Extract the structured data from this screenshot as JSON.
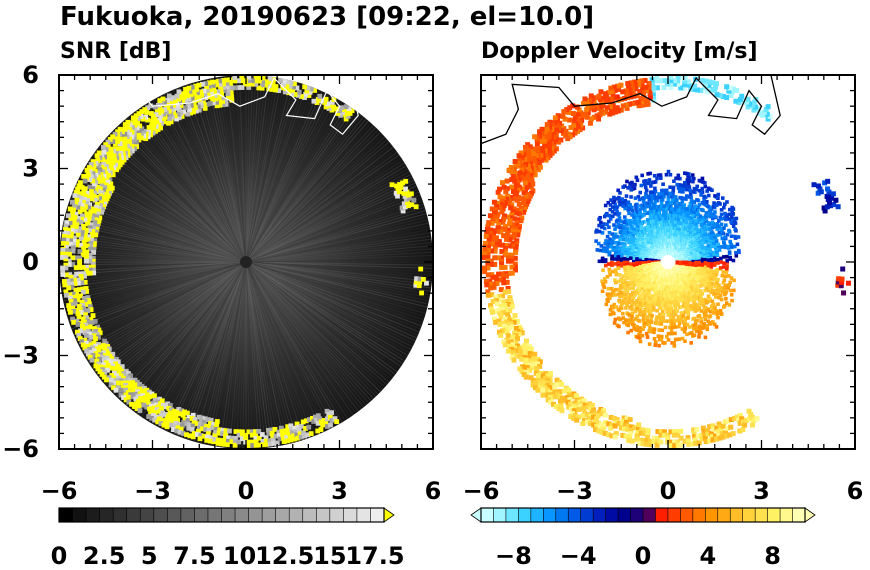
{
  "title": "Fukuoka, 20190623 [09:22, el=10.0]",
  "colors": {
    "snr_grey": [
      "#000000",
      "#111111",
      "#1c1c1c",
      "#262626",
      "#303030",
      "#3a3a3a",
      "#444444",
      "#4e4e4e",
      "#585858",
      "#626262",
      "#6c6c6c",
      "#767676",
      "#808080",
      "#8a8a8a",
      "#949494",
      "#9e9e9e",
      "#a8a8a8",
      "#b2b2b2",
      "#bcbcbc",
      "#c6c6c6",
      "#d0d0d0",
      "#dadada",
      "#e4e4e4",
      "#eeeeee"
    ],
    "snr_over": "#ffff00",
    "doppler": [
      "#c8ffff",
      "#a0f5ff",
      "#6ee6ff",
      "#3cd2ff",
      "#1eb4ff",
      "#0a96ff",
      "#0078f0",
      "#005ae6",
      "#003cd2",
      "#0020be",
      "#000aa5",
      "#00008c",
      "#1e0078",
      "#50005a",
      "#ff1e00",
      "#ff3c00",
      "#ff5a00",
      "#ff7800",
      "#ff9600",
      "#ffaa14",
      "#ffbe28",
      "#ffd23c",
      "#ffe150",
      "#fff064",
      "#fff88c",
      "#ffffb4"
    ]
  },
  "chart_data": [
    {
      "type": "heatmap",
      "title": "SNR [dB]",
      "xlim": [
        -6,
        6
      ],
      "ylim": [
        -6,
        6
      ],
      "xticks": [
        "−6",
        "−3",
        "0",
        "3",
        "6"
      ],
      "yticks": [
        "−6",
        "−3",
        "0",
        "3",
        "6"
      ],
      "colorbar": {
        "range": [
          0,
          18
        ],
        "ticks": [
          "0",
          "2.5",
          "5",
          "7.5",
          "10",
          "12.5",
          "15",
          "17.5"
        ],
        "tick_values": [
          0,
          2.5,
          5,
          7.5,
          10,
          12.5,
          15,
          17.5
        ],
        "extend": "max"
      }
    },
    {
      "type": "heatmap",
      "title": "Doppler Velocity [m/s]",
      "xlim": [
        -6,
        6
      ],
      "ylim": [
        -6,
        6
      ],
      "xticks": [
        "−6",
        "−3",
        "0",
        "3",
        "6"
      ],
      "colorbar": {
        "range": [
          -10,
          10
        ],
        "ticks": [
          "−8",
          "−4",
          "0",
          "4",
          "8"
        ],
        "tick_values": [
          -8,
          -4,
          0,
          4,
          8
        ],
        "extend": "both"
      }
    }
  ]
}
